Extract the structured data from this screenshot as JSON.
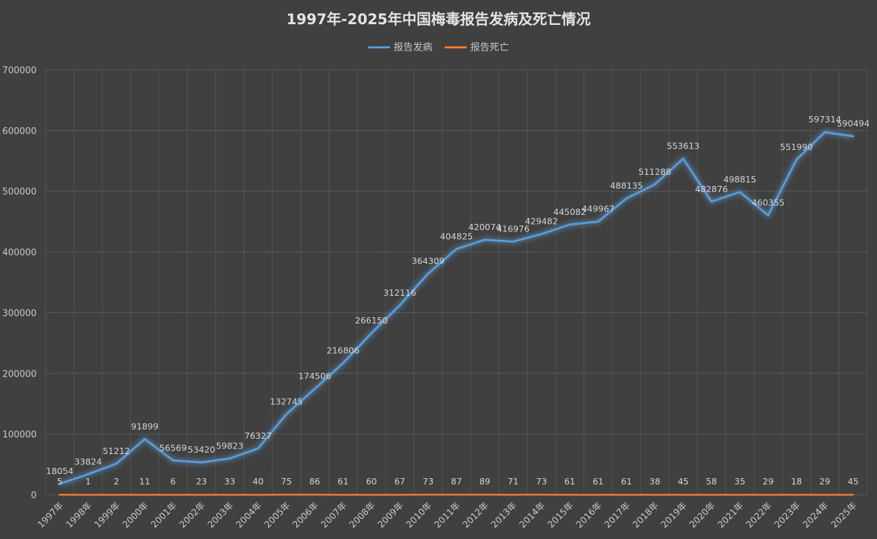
{
  "chart_data": {
    "type": "line",
    "title": "1997年-2025年中国梅毒报告发病及死亡情况",
    "categories": [
      "1997年",
      "1998年",
      "1999年",
      "2000年",
      "2001年",
      "2002年",
      "2003年",
      "2004年",
      "2005年",
      "2006年",
      "2007年",
      "2008年",
      "2009年",
      "2010年",
      "2011年",
      "2012年",
      "2013年",
      "2014年",
      "2015年",
      "2016年",
      "2017年",
      "2018年",
      "2019年",
      "2020年",
      "2021年",
      "2022年",
      "2023年",
      "2024年",
      "2025年"
    ],
    "series": [
      {
        "name": "报告发病",
        "color": "#5b9bd5",
        "values": [
          18054,
          33824,
          51212,
          91899,
          56569,
          53420,
          59823,
          76327,
          132745,
          174506,
          216806,
          266150,
          312116,
          364309,
          404825,
          420074,
          416976,
          429482,
          445082,
          449967,
          488135,
          511288,
          553613,
          482876,
          498815,
          460355,
          551990,
          597314,
          590494
        ]
      },
      {
        "name": "报告死亡",
        "color": "#ed7d31",
        "values": [
          5,
          1,
          2,
          11,
          6,
          23,
          33,
          40,
          75,
          86,
          61,
          60,
          67,
          73,
          87,
          89,
          71,
          73,
          61,
          61,
          61,
          38,
          45,
          58,
          35,
          29,
          18,
          29,
          45
        ]
      }
    ],
    "y_ticks": [
      "0",
      "100000",
      "200000",
      "300000",
      "400000",
      "500000",
      "600000",
      "700000"
    ],
    "ylim": [
      0,
      700000
    ],
    "grid": true,
    "legend_position": "top-center"
  }
}
